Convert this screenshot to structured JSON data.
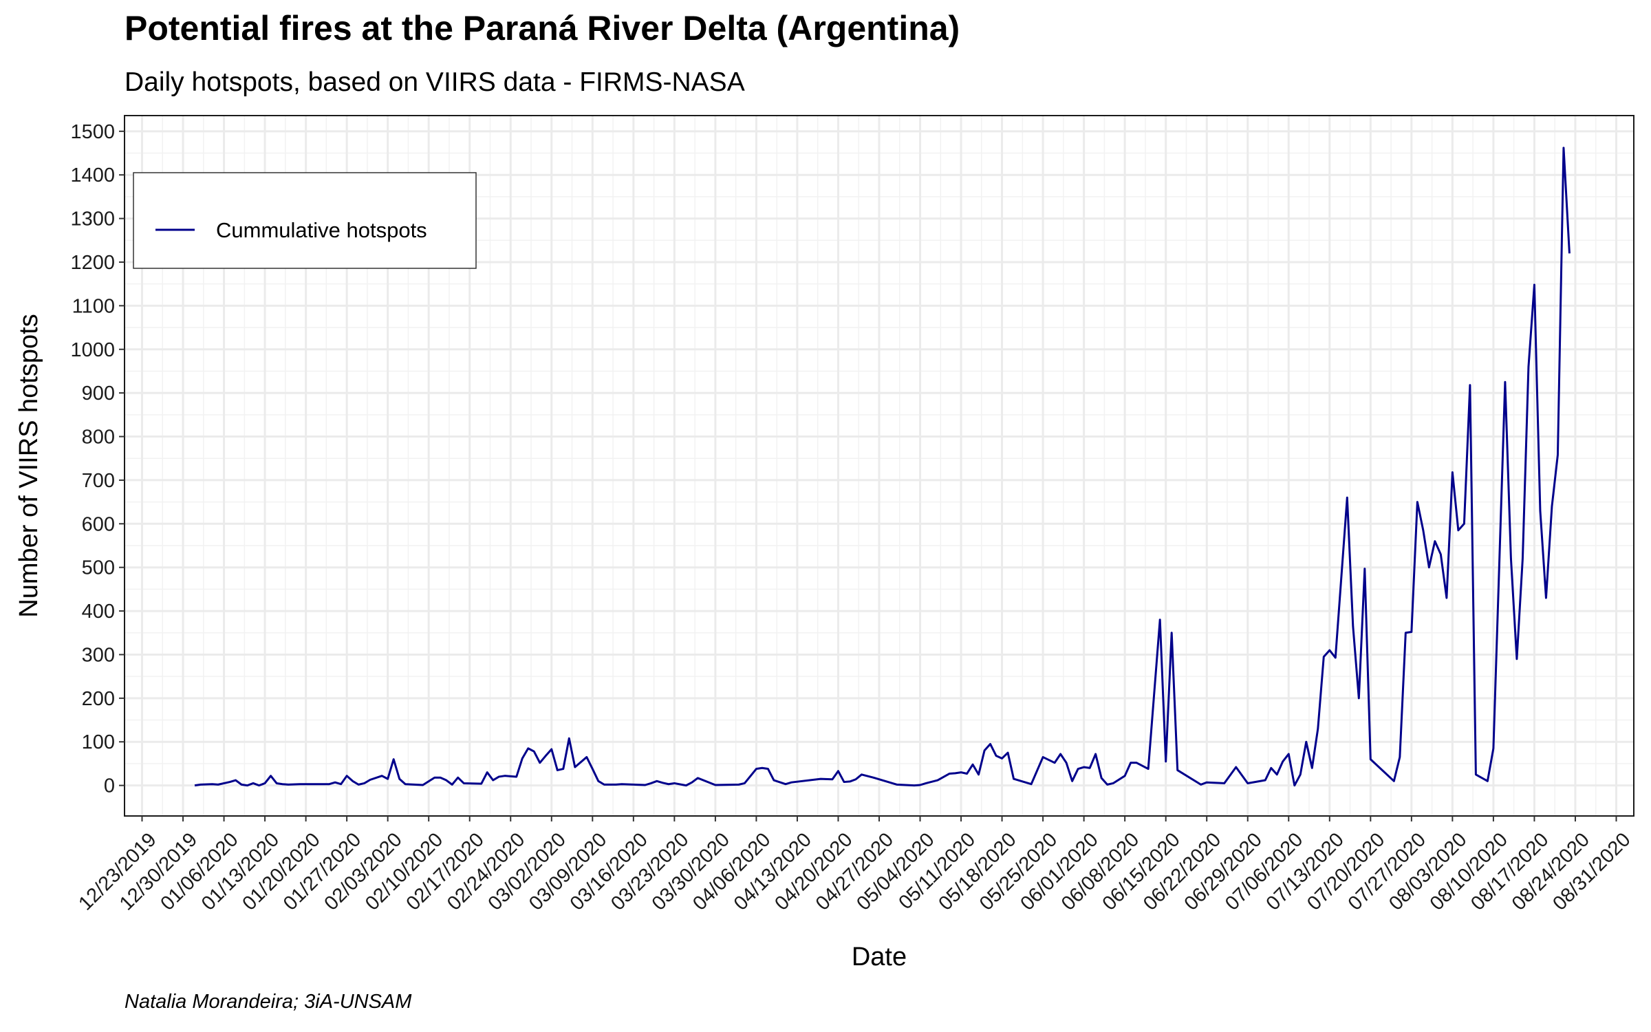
{
  "chart_data": {
    "type": "line",
    "title": "Potential fires at the Paraná River Delta (Argentina)",
    "subtitle": "Daily hotspots, based on VIIRS data - FIRMS-NASA",
    "x_label": "Date",
    "y_label": "Number of VIIRS hotspots",
    "caption": "Natalia Morandeira; 3iA-UNSAM",
    "legend_position": "top-left",
    "grid": true,
    "x": [
      "01/01/2020",
      "01/02/2020",
      "01/04/2020",
      "01/05/2020",
      "01/07/2020",
      "01/08/2020",
      "01/09/2020",
      "01/10/2020",
      "01/11/2020",
      "01/12/2020",
      "01/13/2020",
      "01/14/2020",
      "01/15/2020",
      "01/16/2020",
      "01/17/2020",
      "01/19/2020",
      "01/24/2020",
      "01/25/2020",
      "01/26/2020",
      "01/27/2020",
      "01/28/2020",
      "01/29/2020",
      "01/30/2020",
      "01/31/2020",
      "02/02/2020",
      "02/03/2020",
      "02/04/2020",
      "02/05/2020",
      "02/06/2020",
      "02/09/2020",
      "02/11/2020",
      "02/12/2020",
      "02/13/2020",
      "02/14/2020",
      "02/15/2020",
      "02/16/2020",
      "02/19/2020",
      "02/20/2020",
      "02/21/2020",
      "02/22/2020",
      "02/23/2020",
      "02/25/2020",
      "02/26/2020",
      "02/27/2020",
      "02/28/2020",
      "02/29/2020",
      "03/01/2020",
      "03/02/2020",
      "03/03/2020",
      "03/04/2020",
      "03/05/2020",
      "03/06/2020",
      "03/08/2020",
      "03/09/2020",
      "03/10/2020",
      "03/11/2020",
      "03/13/2020",
      "03/14/2020",
      "03/18/2020",
      "03/19/2020",
      "03/20/2020",
      "03/21/2020",
      "03/22/2020",
      "03/23/2020",
      "03/25/2020",
      "03/26/2020",
      "03/27/2020",
      "03/30/2020",
      "04/03/2020",
      "04/04/2020",
      "04/06/2020",
      "04/07/2020",
      "04/08/2020",
      "04/09/2020",
      "04/11/2020",
      "04/12/2020",
      "04/17/2020",
      "04/19/2020",
      "04/20/2020",
      "04/21/2020",
      "04/22/2020",
      "04/23/2020",
      "04/24/2020",
      "04/26/2020",
      "04/30/2020",
      "05/03/2020",
      "05/04/2020",
      "05/05/2020",
      "05/07/2020",
      "05/09/2020",
      "05/10/2020",
      "05/11/2020",
      "05/12/2020",
      "05/13/2020",
      "05/14/2020",
      "05/15/2020",
      "05/16/2020",
      "05/17/2020",
      "05/18/2020",
      "05/19/2020",
      "05/20/2020",
      "05/23/2020",
      "05/25/2020",
      "05/27/2020",
      "05/28/2020",
      "05/29/2020",
      "05/30/2020",
      "05/31/2020",
      "06/01/2020",
      "06/02/2020",
      "06/03/2020",
      "06/04/2020",
      "06/05/2020",
      "06/06/2020",
      "06/08/2020",
      "06/09/2020",
      "06/10/2020",
      "06/12/2020",
      "06/14/2020",
      "06/15/2020",
      "06/16/2020",
      "06/17/2020",
      "06/21/2020",
      "06/22/2020",
      "06/25/2020",
      "06/27/2020",
      "06/29/2020",
      "07/02/2020",
      "07/03/2020",
      "07/04/2020",
      "07/05/2020",
      "07/06/2020",
      "07/07/2020",
      "07/08/2020",
      "07/09/2020",
      "07/10/2020",
      "07/11/2020",
      "07/12/2020",
      "07/13/2020",
      "07/14/2020",
      "07/16/2020",
      "07/17/2020",
      "07/18/2020",
      "07/19/2020",
      "07/20/2020",
      "07/24/2020",
      "07/25/2020",
      "07/26/2020",
      "07/27/2020",
      "07/28/2020",
      "07/29/2020",
      "07/30/2020",
      "07/31/2020",
      "08/01/2020",
      "08/02/2020",
      "08/03/2020",
      "08/04/2020",
      "08/05/2020",
      "08/06/2020",
      "08/07/2020",
      "08/09/2020",
      "08/10/2020",
      "08/12/2020",
      "08/13/2020",
      "08/14/2020",
      "08/15/2020",
      "08/16/2020",
      "08/17/2020",
      "08/18/2020",
      "08/19/2020",
      "08/20/2020",
      "08/21/2020",
      "08/22/2020",
      "08/23/2020"
    ],
    "series": [
      {
        "name": "Cummulative hotspots",
        "color": "#00008b",
        "values": [
          0,
          2,
          3,
          2,
          8,
          12,
          2,
          0,
          5,
          0,
          5,
          22,
          5,
          3,
          2,
          3,
          3,
          7,
          3,
          22,
          10,
          2,
          5,
          13,
          22,
          15,
          60,
          15,
          3,
          1,
          18,
          18,
          12,
          2,
          18,
          5,
          4,
          30,
          12,
          20,
          22,
          20,
          62,
          85,
          78,
          52,
          68,
          83,
          35,
          38,
          108,
          42,
          65,
          38,
          10,
          2,
          2,
          3,
          1,
          5,
          10,
          6,
          3,
          5,
          0,
          7,
          17,
          1,
          2,
          5,
          38,
          40,
          38,
          12,
          3,
          7,
          15,
          14,
          33,
          8,
          9,
          14,
          25,
          18,
          2,
          0,
          1,
          5,
          12,
          27,
          28,
          30,
          27,
          48,
          25,
          80,
          95,
          68,
          62,
          75,
          15,
          3,
          65,
          52,
          72,
          52,
          10,
          38,
          42,
          40,
          72,
          17,
          2,
          5,
          22,
          52,
          52,
          38,
          380,
          55,
          350,
          35,
          2,
          7,
          5,
          42,
          5,
          12,
          40,
          25,
          55,
          72,
          0,
          25,
          100,
          40,
          130,
          295,
          310,
          293,
          660,
          365,
          200,
          497,
          60,
          10,
          65,
          350,
          352,
          650,
          585,
          500,
          560,
          530,
          430,
          718,
          585,
          600,
          918,
          25,
          10,
          85,
          925,
          520,
          290,
          520,
          960,
          1148,
          630,
          430,
          640,
          758,
          1462,
          1220
        ]
      }
    ],
    "xlim": [
      "12/20/2019",
      "09/03/2020"
    ],
    "xticks": [
      "12/23/2019",
      "12/30/2019",
      "01/06/2020",
      "01/13/2020",
      "01/20/2020",
      "01/27/2020",
      "02/03/2020",
      "02/10/2020",
      "02/17/2020",
      "02/24/2020",
      "03/02/2020",
      "03/09/2020",
      "03/16/2020",
      "03/23/2020",
      "03/30/2020",
      "04/06/2020",
      "04/13/2020",
      "04/20/2020",
      "04/27/2020",
      "05/04/2020",
      "05/11/2020",
      "05/18/2020",
      "05/25/2020",
      "06/01/2020",
      "06/08/2020",
      "06/15/2020",
      "06/22/2020",
      "06/29/2020",
      "07/06/2020",
      "07/13/2020",
      "07/20/2020",
      "07/27/2020",
      "08/03/2020",
      "08/10/2020",
      "08/17/2020",
      "08/24/2020",
      "08/31/2020"
    ],
    "ylim": [
      -70,
      1536
    ],
    "yticks": [
      0,
      100,
      200,
      300,
      400,
      500,
      600,
      700,
      800,
      900,
      1000,
      1100,
      1200,
      1300,
      1400,
      1500
    ]
  }
}
